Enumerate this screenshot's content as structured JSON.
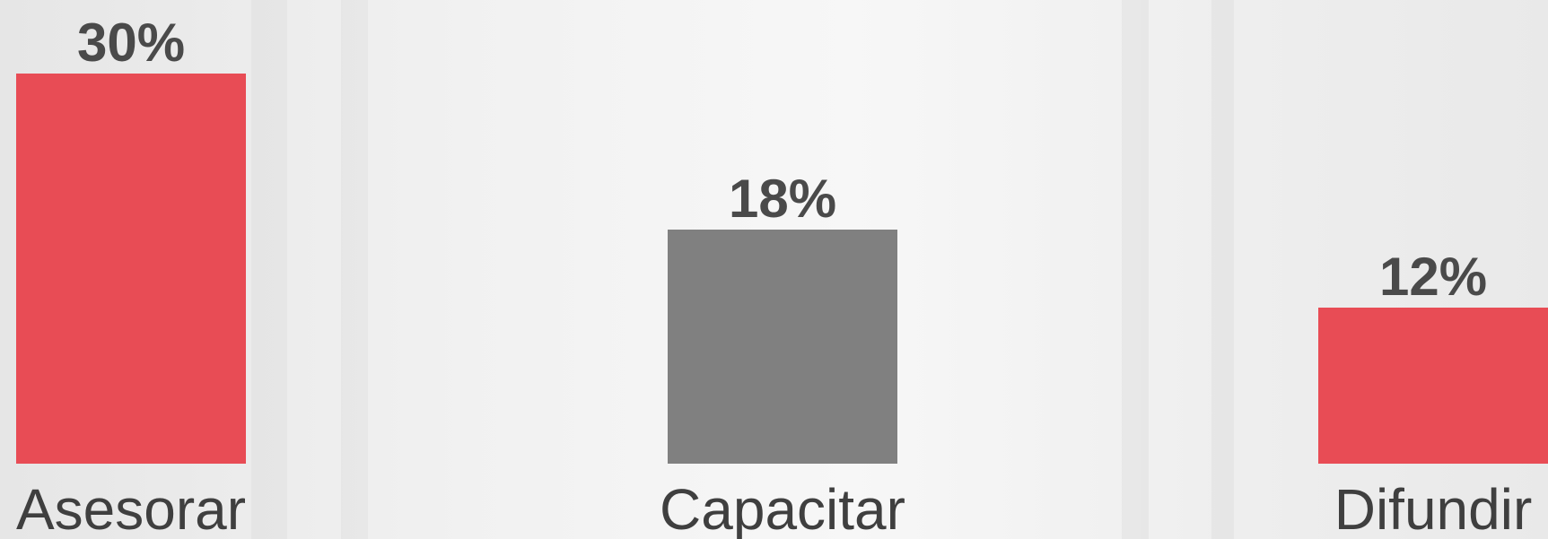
{
  "chart_data": {
    "type": "bar",
    "categories": [
      "Asesorar",
      "Capacitar",
      "Difundir"
    ],
    "values": [
      30,
      18,
      12
    ],
    "value_labels": [
      "30%",
      "18%",
      "12%"
    ],
    "colors": [
      "#e84c55",
      "#808080",
      "#e84c55"
    ],
    "ylim": [
      0,
      30
    ]
  }
}
